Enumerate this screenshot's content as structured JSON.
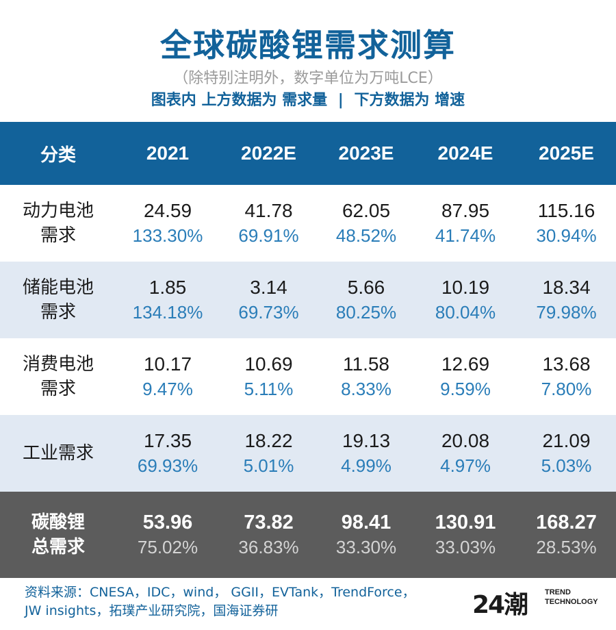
{
  "header": {
    "title": "全球碳酸锂需求测算",
    "subtitle": "（除特别注明外，数字单位为万吨LCE）",
    "legend_part1": "图表内 上方数据为 需求量",
    "legend_sep": "|",
    "legend_part2": "下方数据为 增速"
  },
  "chart_data": {
    "type": "table",
    "title": "全球碳酸锂需求测算",
    "unit": "万吨LCE",
    "columns": [
      "分类",
      "2021",
      "2022E",
      "2023E",
      "2024E",
      "2025E"
    ],
    "rows": [
      {
        "label": "动力电池需求",
        "label_line1": "动力电池",
        "label_line2": "需求",
        "values": [
          "24.59",
          "41.78",
          "62.05",
          "87.95",
          "115.16"
        ],
        "growth": [
          "133.30%",
          "69.91%",
          "48.52%",
          "41.74%",
          "30.94%"
        ]
      },
      {
        "label": "储能电池需求",
        "label_line1": "储能电池",
        "label_line2": "需求",
        "values": [
          "1.85",
          "3.14",
          "5.66",
          "10.19",
          "18.34"
        ],
        "growth": [
          "134.18%",
          "69.73%",
          "80.25%",
          "80.04%",
          "79.98%"
        ]
      },
      {
        "label": "消费电池需求",
        "label_line1": "消费电池",
        "label_line2": "需求",
        "values": [
          "10.17",
          "10.69",
          "11.58",
          "12.69",
          "13.68"
        ],
        "growth": [
          "9.47%",
          "5.11%",
          "8.33%",
          "9.59%",
          "7.80%"
        ]
      },
      {
        "label": "工业需求",
        "label_line1": "工业需求",
        "label_line2": "",
        "values": [
          "17.35",
          "18.22",
          "19.13",
          "20.08",
          "21.09"
        ],
        "growth": [
          "69.93%",
          "5.01%",
          "4.99%",
          "4.97%",
          "5.03%"
        ]
      },
      {
        "label": "碳酸锂总需求",
        "label_line1": "碳酸锂",
        "label_line2": "总需求",
        "values": [
          "53.96",
          "73.82",
          "98.41",
          "130.91",
          "168.27"
        ],
        "growth": [
          "75.02%",
          "36.83%",
          "33.30%",
          "33.03%",
          "28.53%"
        ]
      }
    ]
  },
  "footer": {
    "source_line1": "资料来源：CNESA，IDC，wind， GGII，EVTank，TrendForce，",
    "source_line2": "JW insights，拓璞产业研究院，国海证券研",
    "logo_mark": "24潮",
    "logo_line1": "TREND",
    "logo_line2": "TECHNOLOGY"
  },
  "colors": {
    "brand_blue": "#12629a",
    "header_bg": "#12629a",
    "alt_row_bg": "#e1e9f3",
    "total_row_bg": "#5c5c5c",
    "growth_text": "#2a7db8"
  }
}
